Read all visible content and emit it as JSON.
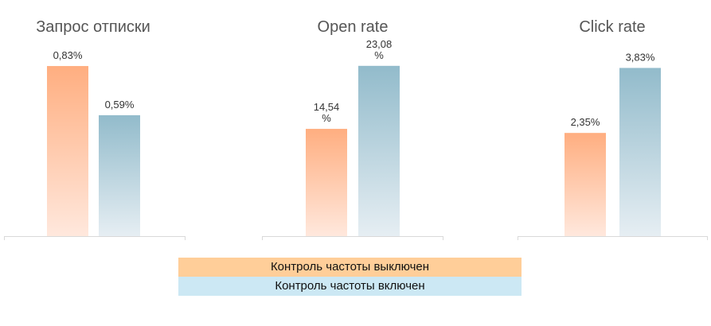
{
  "colors": {
    "orange_top": "#FFAE80",
    "orange_bottom": "#FFE8DD",
    "blue_top": "#92BBCB",
    "blue_bottom": "#E6EEF3",
    "legend_orange": "#FFCE99",
    "legend_blue": "#CCE8F4",
    "title": "#555555",
    "label": "#333333",
    "axis": "#D9D9D9"
  },
  "legend": {
    "items": [
      {
        "label": "Контроль частоты выключен"
      },
      {
        "label": "Контроль частоты включен"
      }
    ]
  },
  "chart_data": [
    {
      "type": "bar",
      "title": "Запрос отписки",
      "ylim": [
        0,
        0.9
      ],
      "series": [
        {
          "name": "Контроль частоты выключен",
          "value": 0.83,
          "label_lines": [
            "0,83%"
          ]
        },
        {
          "name": "Контроль частоты включен",
          "value": 0.59,
          "label_lines": [
            "0,59%"
          ]
        }
      ]
    },
    {
      "type": "bar",
      "title": "Open rate",
      "ylim": [
        0,
        25
      ],
      "series": [
        {
          "name": "Контроль частоты выключен",
          "value": 14.54,
          "label_lines": [
            "14,54",
            "%"
          ]
        },
        {
          "name": "Контроль частоты включен",
          "value": 23.08,
          "label_lines": [
            "23,08",
            "%"
          ]
        }
      ]
    },
    {
      "type": "bar",
      "title": "Click rate",
      "ylim": [
        0,
        4.2
      ],
      "series": [
        {
          "name": "Контроль частоты выключен",
          "value": 2.35,
          "label_lines": [
            "2,35%"
          ]
        },
        {
          "name": "Контроль частоты включен",
          "value": 3.83,
          "label_lines": [
            "3,83%"
          ]
        }
      ]
    }
  ]
}
